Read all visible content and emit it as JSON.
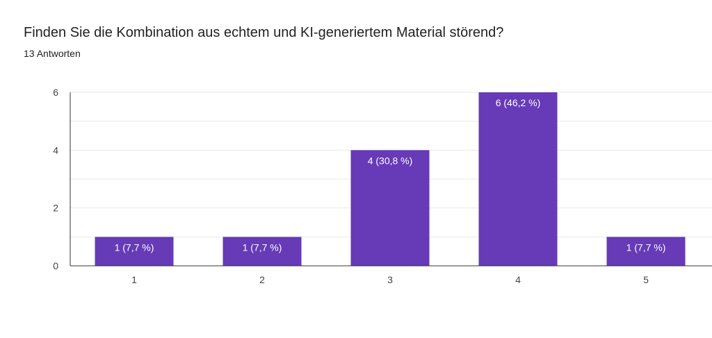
{
  "chart_data": {
    "type": "bar",
    "title": "Finden Sie die Kombination aus echtem und KI-generiertem Material störend?",
    "subtitle": "13 Antworten",
    "categories": [
      "1",
      "2",
      "3",
      "4",
      "5"
    ],
    "values": [
      1,
      1,
      4,
      6,
      1
    ],
    "data_labels": [
      "1 (7,7 %)",
      "1 (7,7 %)",
      "4 (30,8 %)",
      "6 (46,2 %)",
      "1 (7,7 %)"
    ],
    "y_ticks": [
      "0",
      "2",
      "4",
      "6"
    ],
    "ylim": [
      0,
      6
    ],
    "grid": true,
    "xlabel": "",
    "ylabel": ""
  },
  "colors": {
    "bar": "#673ab7",
    "grid": "#e8e8e8",
    "axis": "#333333"
  }
}
